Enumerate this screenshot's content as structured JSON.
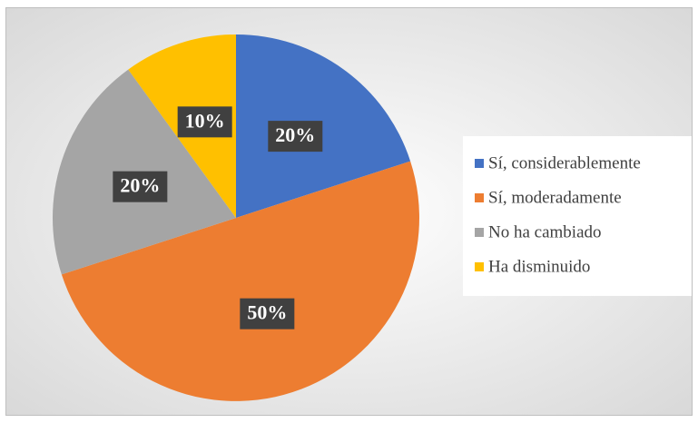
{
  "chart_data": {
    "type": "pie",
    "categories": [
      "Sí, considerablemente",
      "Sí, moderadamente",
      "No ha cambiado",
      "Ha disminuido"
    ],
    "values": [
      20,
      50,
      20,
      10
    ],
    "value_labels": [
      "20%",
      "50%",
      "20%",
      "10%"
    ],
    "colors": [
      "#4472c4",
      "#ed7d31",
      "#a5a5a5",
      "#ffc000"
    ],
    "legend": "right"
  }
}
